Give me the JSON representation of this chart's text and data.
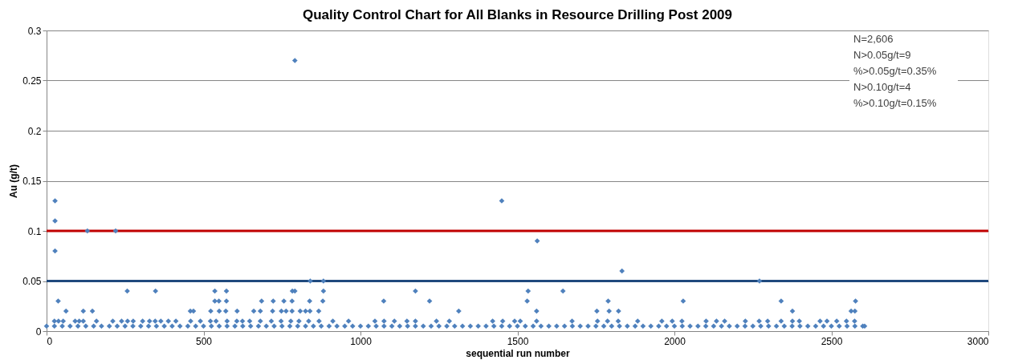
{
  "chart_data": {
    "type": "scatter",
    "title": "Quality Control Chart for All Blanks in Resource Drilling Post 2009",
    "xlabel": "sequential run number",
    "ylabel": "Au (g/t)",
    "xlim": [
      0,
      3000
    ],
    "xticks": [
      0,
      500,
      1000,
      1500,
      2000,
      2500,
      3000
    ],
    "ylim": [
      0,
      0.3
    ],
    "yticks": [
      0,
      0.05,
      0.1,
      0.15,
      0.2,
      0.25,
      0.3
    ],
    "grid": "y",
    "marker": "diamond",
    "ref_lines": [
      {
        "axis": "y",
        "value": 0.1,
        "color": "#c00000"
      },
      {
        "axis": "y",
        "value": 0.05,
        "color": "#1f497d"
      }
    ],
    "annotations": [
      "N=2,606",
      "N>0.05g/t=9",
      "%>0.05g/t=0.35%",
      "N>0.10g/t=4",
      "%>0.10g/t=0.15%"
    ],
    "series": [
      {
        "color": "#4f81bd",
        "x": [
          791,
          27,
          27,
          27,
          130,
          220,
          1450,
          1563,
          1833,
          840,
          882,
          2271
        ],
        "values": [
          0.27,
          0.13,
          0.11,
          0.08,
          0.1,
          0.1,
          0.13,
          0.09,
          0.06,
          0.05,
          0.05,
          0.05
        ]
      },
      {
        "color": "#4f81bd",
        "x": [
          257,
          347,
          536,
          573,
          783,
          791,
          882,
          1175,
          1534,
          1645
        ],
        "values": [
          0.04,
          0.04,
          0.04,
          0.04,
          0.04,
          0.04,
          0.04,
          0.04,
          0.04,
          0.04
        ]
      },
      {
        "color": "#4f81bd",
        "x": [
          37,
          536,
          549,
          573,
          685,
          722,
          756,
          782,
          838,
          880,
          1074,
          1220,
          1531,
          1789,
          2028,
          2340,
          2577
        ],
        "values": [
          0.03,
          0.03,
          0.03,
          0.03,
          0.03,
          0.03,
          0.03,
          0.03,
          0.03,
          0.03,
          0.03,
          0.03,
          0.03,
          0.03,
          0.03,
          0.03,
          0.03
        ]
      },
      {
        "color": "#4f81bd",
        "x": [
          62,
          117,
          146,
          458,
          468,
          523,
          550,
          571,
          607,
          660,
          681,
          720,
          748,
          763,
          782,
          808,
          825,
          839,
          867,
          1313,
          1561,
          1753,
          1792,
          1822,
          2376,
          2563,
          2575
        ],
        "values": [
          0.02,
          0.02,
          0.02,
          0.02,
          0.02,
          0.02,
          0.02,
          0.02,
          0.02,
          0.02,
          0.02,
          0.02,
          0.02,
          0.02,
          0.02,
          0.02,
          0.02,
          0.02,
          0.02,
          0.02,
          0.02,
          0.02,
          0.02,
          0.02,
          0.02,
          0.02,
          0.02
        ]
      },
      {
        "color": "#4f81bd",
        "x": [
          25,
          38,
          53,
          91,
          104,
          117,
          159,
          211,
          239,
          258,
          276,
          306,
          328,
          346,
          364,
          388,
          412,
          459,
          490,
          522,
          540,
          575,
          606,
          624,
          647,
          681,
          716,
          747,
          778,
          804,
          835,
          868,
          912,
          962,
          1046,
          1075,
          1108,
          1148,
          1175,
          1242,
          1283,
          1421,
          1453,
          1491,
          1509,
          1561,
          1674,
          1755,
          1787,
          1821,
          1883,
          1960,
          1993,
          2024,
          2101,
          2134,
          2160,
          2226,
          2270,
          2297,
          2340,
          2376,
          2398,
          2464,
          2486,
          2517,
          2548,
          2574
        ],
        "values": [
          0.01,
          0.01,
          0.01,
          0.01,
          0.01,
          0.01,
          0.01,
          0.01,
          0.01,
          0.01,
          0.01,
          0.01,
          0.01,
          0.01,
          0.01,
          0.01,
          0.01,
          0.01,
          0.01,
          0.01,
          0.01,
          0.01,
          0.01,
          0.01,
          0.01,
          0.01,
          0.01,
          0.01,
          0.01,
          0.01,
          0.01,
          0.01,
          0.01,
          0.01,
          0.01,
          0.01,
          0.01,
          0.01,
          0.01,
          0.01,
          0.01,
          0.01,
          0.01,
          0.01,
          0.01,
          0.01,
          0.01,
          0.01,
          0.01,
          0.01,
          0.01,
          0.01,
          0.01,
          0.01,
          0.01,
          0.01,
          0.01,
          0.01,
          0.01,
          0.01,
          0.01,
          0.01,
          0.01,
          0.01,
          0.01,
          0.01,
          0.01,
          0.01
        ]
      },
      {
        "color": "#4f81bd",
        "x": [
          0,
          25,
          50,
          75,
          100,
          125,
          150,
          175,
          200,
          225,
          250,
          275,
          300,
          325,
          350,
          375,
          400,
          425,
          450,
          475,
          500,
          525,
          550,
          575,
          600,
          625,
          650,
          675,
          700,
          725,
          750,
          775,
          800,
          825,
          850,
          875,
          900,
          925,
          950,
          975,
          1000,
          1025,
          1050,
          1075,
          1100,
          1125,
          1150,
          1175,
          1200,
          1225,
          1250,
          1275,
          1300,
          1325,
          1350,
          1375,
          1400,
          1425,
          1450,
          1475,
          1500,
          1525,
          1550,
          1575,
          1600,
          1625,
          1650,
          1675,
          1700,
          1725,
          1750,
          1775,
          1800,
          1825,
          1850,
          1875,
          1900,
          1925,
          1950,
          1975,
          2000,
          2025,
          2050,
          2075,
          2100,
          2125,
          2150,
          2175,
          2200,
          2225,
          2250,
          2275,
          2300,
          2325,
          2350,
          2375,
          2400,
          2425,
          2450,
          2475,
          2500,
          2525,
          2550,
          2575,
          2600,
          2606
        ],
        "values": [
          0.005,
          0.005,
          0.005,
          0.005,
          0.005,
          0.005,
          0.005,
          0.005,
          0.005,
          0.005,
          0.005,
          0.005,
          0.005,
          0.005,
          0.005,
          0.005,
          0.005,
          0.005,
          0.005,
          0.005,
          0.005,
          0.005,
          0.005,
          0.005,
          0.005,
          0.005,
          0.005,
          0.005,
          0.005,
          0.005,
          0.005,
          0.005,
          0.005,
          0.005,
          0.005,
          0.005,
          0.005,
          0.005,
          0.005,
          0.005,
          0.005,
          0.005,
          0.005,
          0.005,
          0.005,
          0.005,
          0.005,
          0.005,
          0.005,
          0.005,
          0.005,
          0.005,
          0.005,
          0.005,
          0.005,
          0.005,
          0.005,
          0.005,
          0.005,
          0.005,
          0.005,
          0.005,
          0.005,
          0.005,
          0.005,
          0.005,
          0.005,
          0.005,
          0.005,
          0.005,
          0.005,
          0.005,
          0.005,
          0.005,
          0.005,
          0.005,
          0.005,
          0.005,
          0.005,
          0.005,
          0.005,
          0.005,
          0.005,
          0.005,
          0.005,
          0.005,
          0.005,
          0.005,
          0.005,
          0.005,
          0.005,
          0.005,
          0.005,
          0.005,
          0.005,
          0.005,
          0.005,
          0.005,
          0.005,
          0.005,
          0.005,
          0.005,
          0.005,
          0.005,
          0.005,
          0.005
        ]
      }
    ]
  }
}
